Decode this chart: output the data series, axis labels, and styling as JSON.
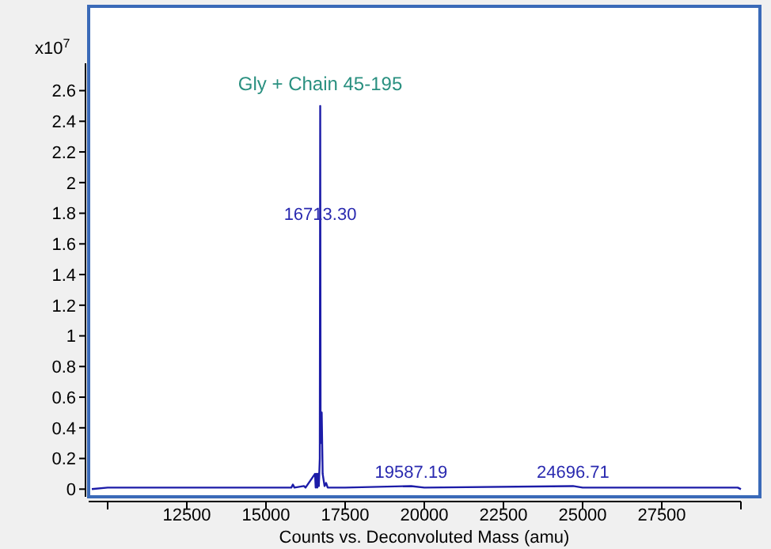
{
  "chart_data": {
    "type": "line",
    "xlabel": "Counts vs. Deconvoluted Mass (amu)",
    "ylabel": "x10$^{7}$",
    "x": [
      9500,
      10000,
      12000,
      15800,
      15850,
      15900,
      16200,
      16250,
      16550,
      16570,
      16600,
      16620,
      16650,
      16670,
      16700,
      16713.3,
      16725,
      16760,
      16790,
      16820,
      16850,
      16900,
      16950,
      17500,
      19587.19,
      20000,
      24696.71,
      25000,
      29900,
      30000
    ],
    "series": [
      {
        "color": "#1c1ca8",
        "values": [
          0,
          0.01,
          0.01,
          0.01,
          0.03,
          0.01,
          0.02,
          0.01,
          0.1,
          0.01,
          0.1,
          0.01,
          0.1,
          0.02,
          0.2,
          2.5,
          0.3,
          0.5,
          0.1,
          0.06,
          0.02,
          0.04,
          0.01,
          0.01,
          0.02,
          0.01,
          0.02,
          0.01,
          0.01,
          0
        ]
      }
    ],
    "xlim": [
      9400,
      30600
    ],
    "xticks": [
      {
        "value": 10000,
        "label": null
      },
      12500,
      15000,
      17500,
      20000,
      22500,
      25000,
      27500,
      {
        "value": 30000,
        "label": null
      }
    ],
    "ylim": [
      -0.05,
      3.15
    ],
    "yticks": [
      0,
      0.2,
      0.4,
      0.6,
      0.8,
      1,
      1.2,
      1.4,
      1.6,
      1.8,
      2,
      2.2,
      2.4,
      2.6
    ],
    "grid": false,
    "marker": "none",
    "line_style": "solid",
    "annotations": [
      {
        "text": "Gly + Chain 45-195",
        "x": 16713.3,
        "y": 2.5
      },
      {
        "text": "16713.30",
        "x": 16713.3,
        "y": 1.8
      },
      {
        "text": "19587.19",
        "x": 19587.19,
        "y": 0.02
      },
      {
        "text": "24696.71",
        "x": 24696.71,
        "y": 0.02
      }
    ]
  }
}
